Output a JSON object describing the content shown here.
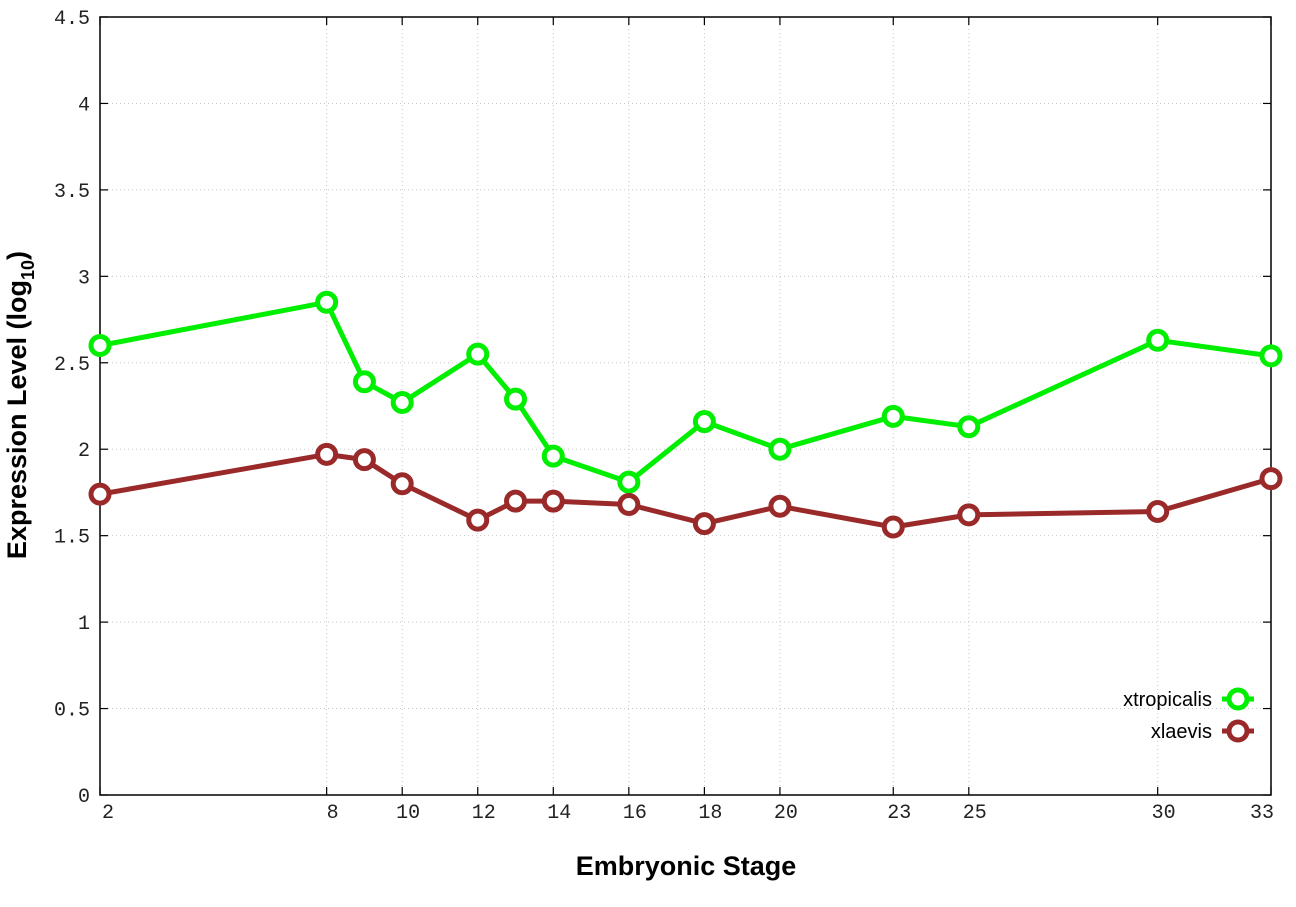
{
  "chart_data": {
    "type": "line",
    "title": "",
    "xlabel": "Embryonic Stage",
    "ylabel": "Expression Level (log",
    "ylabel_subscript": "10",
    "ylabel_close": ")",
    "x": [
      2,
      8,
      9,
      10,
      12,
      13,
      14,
      16,
      18,
      20,
      23,
      25,
      30,
      33
    ],
    "x_tick_labels": [
      "2",
      "8",
      "10",
      "12",
      "14",
      "16",
      "18",
      "20",
      "23",
      "25",
      "30",
      "33"
    ],
    "y_tick_labels": [
      "0",
      "0.5",
      "1",
      "1.5",
      "2",
      "2.5",
      "3",
      "3.5",
      "4",
      "4.5"
    ],
    "xlim": [
      2,
      33
    ],
    "ylim": [
      0,
      4.5
    ],
    "grid": true,
    "legend_position": "bottom-right",
    "series": [
      {
        "name": "xtropicalis",
        "color": "#00ee00",
        "values": [
          2.6,
          2.85,
          2.39,
          2.27,
          2.55,
          2.29,
          1.96,
          1.81,
          2.16,
          2.0,
          2.19,
          2.13,
          2.63,
          2.54
        ]
      },
      {
        "name": "xlaevis",
        "color": "#9a2a2a",
        "values": [
          1.74,
          1.97,
          1.94,
          1.8,
          1.59,
          1.7,
          1.7,
          1.68,
          1.57,
          1.67,
          1.55,
          1.62,
          1.64,
          1.83
        ]
      }
    ]
  }
}
